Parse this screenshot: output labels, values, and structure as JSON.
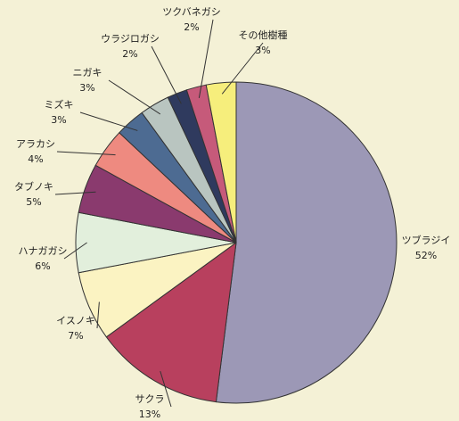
{
  "chart_data": {
    "type": "pie",
    "categories": [
      "ツブラジイ",
      "サクラ",
      "イスノキ",
      "ハナガガシ",
      "タブノキ",
      "アラカシ",
      "ミズキ",
      "ニガキ",
      "ウラジロガシ",
      "ツクバネガシ",
      "その他樹種"
    ],
    "values": [
      52,
      13,
      7,
      6,
      5,
      4,
      3,
      3,
      2,
      2,
      3
    ],
    "value_labels": [
      "52%",
      "13%",
      "7%",
      "6%",
      "5%",
      "4%",
      "3%",
      "3%",
      "2%",
      "2%",
      "3%"
    ],
    "colors": [
      "#9c98b6",
      "#b8405e",
      "#fbf3c2",
      "#e2efdc",
      "#8a3a6e",
      "#ee8a80",
      "#4d6b92",
      "#b9c5c0",
      "#2f3a5e",
      "#c65a7a",
      "#f6ee7c"
    ]
  }
}
